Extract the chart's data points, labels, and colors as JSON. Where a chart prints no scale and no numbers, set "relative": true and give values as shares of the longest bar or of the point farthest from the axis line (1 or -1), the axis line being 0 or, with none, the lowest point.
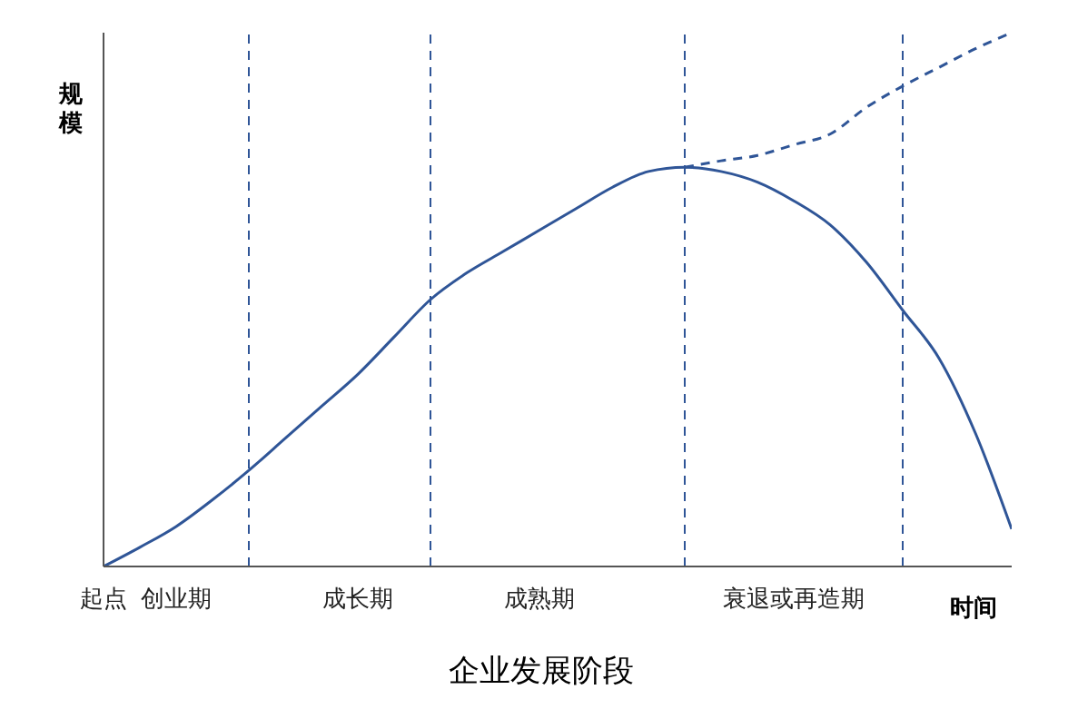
{
  "chart_data": {
    "type": "line",
    "title": "企业发展阶段",
    "xlabel": "时间",
    "ylabel": "规模",
    "relative": true,
    "categories": [
      "起点",
      null,
      "创业期",
      null,
      null,
      null,
      null,
      "成长期",
      null,
      null,
      null,
      null,
      "成熟期",
      null,
      null,
      null,
      null,
      null,
      null,
      "衰退或再造期",
      null,
      null,
      null,
      null,
      null,
      null
    ],
    "series": [
      {
        "color": "#2f5597",
        "line_style": "solid",
        "values": [
          0,
          0.036,
          0.075,
          0.125,
          0.18,
          0.24,
          0.3,
          0.36,
          0.43,
          0.5,
          0.55,
          0.59,
          0.63,
          0.67,
          0.71,
          0.74,
          0.748,
          0.74,
          0.72,
          0.685,
          0.64,
          0.57,
          0.48,
          0.39,
          0.25,
          0.07
        ]
      },
      {
        "color": "#2f5597",
        "line_style": "dashed",
        "values": [
          null,
          null,
          null,
          null,
          null,
          null,
          null,
          null,
          null,
          null,
          null,
          null,
          null,
          null,
          null,
          null,
          0.748,
          0.76,
          0.77,
          0.79,
          0.81,
          0.86,
          0.9,
          0.935,
          0.97,
          1
        ]
      }
    ],
    "grid": "x"
  }
}
